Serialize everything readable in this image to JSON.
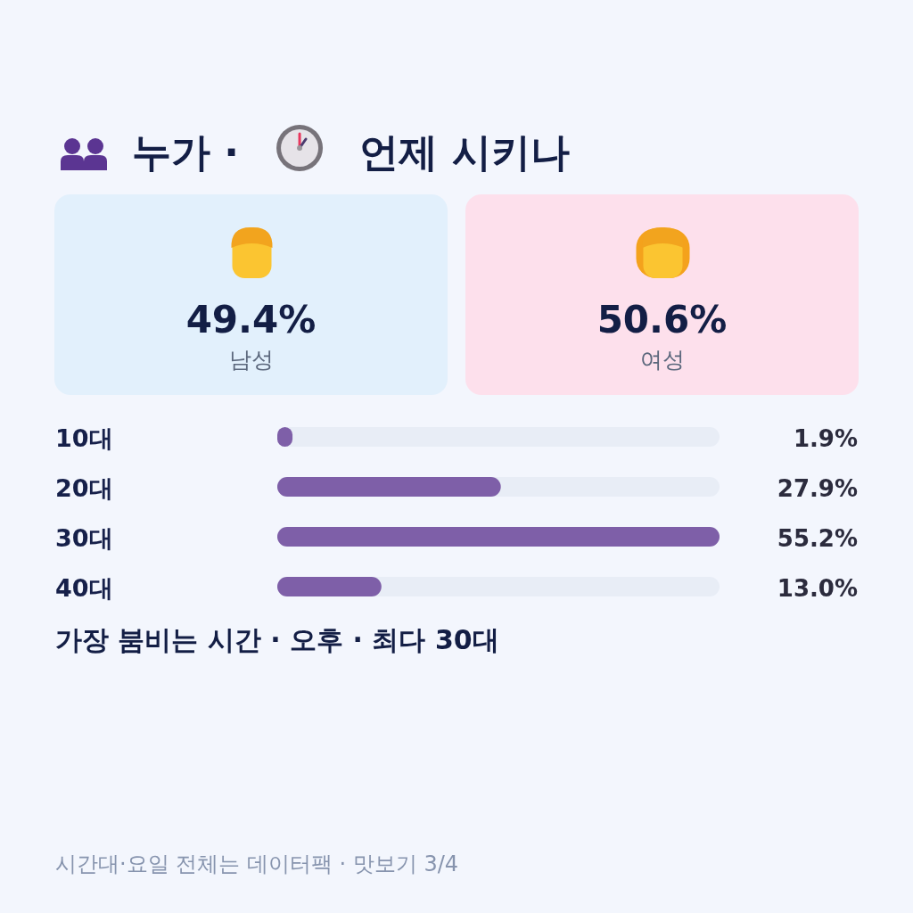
{
  "chart_data": [
    {
      "type": "other",
      "title": "누가 · 언제 시키나",
      "categories": [
        "남성",
        "여성"
      ],
      "value_labels": [
        "49.4%",
        "50.6%"
      ],
      "colors": [
        "#e2f0fc",
        "#fde0ec"
      ]
    },
    {
      "type": "bar",
      "orientation": "horizontal",
      "categories": [
        "10대",
        "20대",
        "30대",
        "40대"
      ],
      "values": [
        1.9,
        27.9,
        55.2,
        13.0
      ],
      "value_labels": [
        "1.9%",
        "27.9%",
        "55.2%",
        "13.0%"
      ],
      "color": "#7e5fa8",
      "annotations": [
        "가장 붐비는 시간 · 오후 · 최다 30대",
        "시간대·요일 전체는 데이터팩 · 맛보기 3/4"
      ]
    }
  ]
}
